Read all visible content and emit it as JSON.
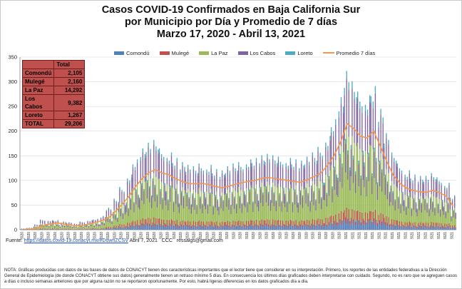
{
  "title_lines": [
    "Casos COVID-19 Confirmados en Baja California Sur",
    "por Municipio por Día y Promedio de 7 días",
    "Marzo 17, 2020 - Abril 13, 2021"
  ],
  "colors": {
    "comondu": "#4f81bd",
    "mulege": "#c0504d",
    "lapaz": "#9bbb59",
    "loscabos": "#8064a2",
    "loreto": "#4bacc6",
    "promedio": "#f79646",
    "grid": "#d9d9d9"
  },
  "legend": [
    "Comondú",
    "Mulegé",
    "La Paz",
    "Los Cabos",
    "Loreto",
    "Promedio 7 días"
  ],
  "table": {
    "header": "Total",
    "rows": [
      {
        "name": "Comondú",
        "value": "2,105"
      },
      {
        "name": "Mulegé",
        "value": "2,160"
      },
      {
        "name": "La Paz",
        "value": "14,292"
      },
      {
        "name": "Los Cabos",
        "value": "9,382"
      },
      {
        "name": "Loreto",
        "value": "1,267"
      },
      {
        "name": "TOTAL",
        "value": "29,206"
      }
    ]
  },
  "source": {
    "prefix": "Fuente:",
    "link": "https://datos.covid-19.conacyt.mx/#DownZCSV",
    "date": "Abril 7, 2021",
    "ccc": "CCC",
    "email": "ressalgs@gmail.com"
  },
  "note": "NOTA: Gráficas producidas con datos de las bases de datos de CONACYT tienen dos características importantes que el lector tiene que considerar en su interpretación. Primero, los reportes de las entidades federativas a la Dirección General de Epidemiología (de donde CONACYT obtiene sus datos) generalmente tienen un retraso mínimo 5 días. En consecuencia los últimos días graficados deben interpretarse con cuidado. Segundo, no es raro que se agreguen casos a días o incluso semanas anteriores que por alguna razón no se reportaron oportunamente. Por esto, habrá ligeras diferencias en los datos graficados día a día.",
  "chart_data": {
    "type": "bar",
    "stacked": true,
    "ylim": [
      0,
      350
    ],
    "yticks": [
      0,
      50,
      100,
      150,
      200,
      250,
      300,
      350
    ],
    "grid": true,
    "legend_position": "top",
    "xtick_labels": [
      "17-03-2020",
      "23-03-2020",
      "29-03-2020",
      "4/4/2020",
      "10-04-2020",
      "16-04-2020",
      "22-04-2020",
      "28-04-2020",
      "4/5/2020",
      "10-05-2020",
      "16-05-2020",
      "22-05-2020",
      "28-05-2020",
      "3/6/2020",
      "9/6/2020",
      "15-06-2020",
      "21-06-2020",
      "27-06-2020",
      "3/7/2020",
      "9/7/2020",
      "15-07-2020",
      "21-07-2020",
      "27-07-2020",
      "2/8/2020",
      "8/8/2020",
      "14-08-2020",
      "20-08-2020",
      "26-08-2020",
      "1/9/2020",
      "7/9/2020",
      "13-09-2020",
      "19-09-2020",
      "25-09-2020",
      "1/10/2020",
      "7/10/2020",
      "13-10-2020",
      "19-10-2020",
      "25-10-2020",
      "31-10-2020",
      "6/11/2020",
      "12/11/2020",
      "18-11-2020",
      "24-11-2020",
      "30-11-2020",
      "6/12/2020",
      "12/12/2020",
      "18-12-2020",
      "24-12-2020",
      "30-12-2020",
      "5/1/2021",
      "11/1/2021",
      "17/1/2021",
      "23/1/2021",
      "29/1/2021",
      "4/2/2021",
      "10/2/2021",
      "16/2/2021",
      "22/2/2021",
      "28/2/2021",
      "6/3/2021",
      "12/3/2021",
      "18/3/2021",
      "24/3/2021",
      "30/3/2021",
      "5/4/2021",
      "11/4/2021"
    ],
    "series_names": [
      "Comondú",
      "Mulegé",
      "La Paz",
      "Los Cabos",
      "Loreto"
    ],
    "weekly_totals": [
      2,
      3,
      8,
      15,
      14,
      14,
      12,
      11,
      9,
      12,
      14,
      16,
      20,
      32,
      45,
      62,
      80,
      102,
      118,
      126,
      130,
      118,
      112,
      104,
      98,
      94,
      92,
      96,
      94,
      88,
      86,
      92,
      96,
      98,
      102,
      104,
      108,
      110,
      108,
      106,
      104,
      102,
      100,
      106,
      112,
      120,
      136,
      160,
      192,
      230,
      215,
      200,
      195,
      208,
      175,
      140,
      112,
      96,
      86,
      80,
      78,
      78,
      82,
      76,
      68,
      50
    ],
    "weekly_shares": {
      "comondu": [
        0.07,
        0.07,
        0.07,
        0.07,
        0.07,
        0.07,
        0.07,
        0.07,
        0.07,
        0.07,
        0.07,
        0.07,
        0.07,
        0.07,
        0.07,
        0.07,
        0.07,
        0.07,
        0.07,
        0.07,
        0.07,
        0.07,
        0.07,
        0.07,
        0.07,
        0.07,
        0.07,
        0.07,
        0.07,
        0.07,
        0.07,
        0.07,
        0.07,
        0.07,
        0.07,
        0.07,
        0.07,
        0.07,
        0.07,
        0.07,
        0.07,
        0.07,
        0.07,
        0.07,
        0.07,
        0.07,
        0.07,
        0.07,
        0.07,
        0.07,
        0.07,
        0.07,
        0.07,
        0.07,
        0.07,
        0.07,
        0.07,
        0.07,
        0.07,
        0.07,
        0.07,
        0.07,
        0.07,
        0.07,
        0.07,
        0.07
      ],
      "mulege": [
        0.07,
        0.07,
        0.07,
        0.07,
        0.07,
        0.07,
        0.07,
        0.07,
        0.07,
        0.07,
        0.07,
        0.07,
        0.07,
        0.07,
        0.07,
        0.07,
        0.07,
        0.07,
        0.07,
        0.07,
        0.07,
        0.07,
        0.07,
        0.07,
        0.07,
        0.07,
        0.07,
        0.07,
        0.07,
        0.07,
        0.07,
        0.07,
        0.07,
        0.07,
        0.07,
        0.07,
        0.07,
        0.07,
        0.07,
        0.07,
        0.07,
        0.07,
        0.07,
        0.07,
        0.07,
        0.07,
        0.07,
        0.07,
        0.07,
        0.07,
        0.07,
        0.07,
        0.07,
        0.07,
        0.07,
        0.07,
        0.07,
        0.07,
        0.07,
        0.07,
        0.07,
        0.07,
        0.07,
        0.07,
        0.07,
        0.07
      ],
      "lapaz": [
        0.49,
        0.49,
        0.49,
        0.49,
        0.49,
        0.49,
        0.49,
        0.49,
        0.49,
        0.49,
        0.49,
        0.49,
        0.49,
        0.49,
        0.49,
        0.49,
        0.49,
        0.49,
        0.49,
        0.49,
        0.49,
        0.49,
        0.49,
        0.49,
        0.49,
        0.49,
        0.49,
        0.49,
        0.49,
        0.49,
        0.49,
        0.49,
        0.49,
        0.49,
        0.49,
        0.49,
        0.49,
        0.49,
        0.49,
        0.49,
        0.49,
        0.49,
        0.49,
        0.49,
        0.49,
        0.49,
        0.49,
        0.49,
        0.49,
        0.49,
        0.49,
        0.49,
        0.49,
        0.49,
        0.49,
        0.49,
        0.49,
        0.49,
        0.49,
        0.49,
        0.49,
        0.49,
        0.49,
        0.49,
        0.49,
        0.49
      ],
      "loscabos": [
        0.32,
        0.32,
        0.32,
        0.32,
        0.32,
        0.32,
        0.32,
        0.32,
        0.32,
        0.32,
        0.32,
        0.32,
        0.32,
        0.32,
        0.32,
        0.32,
        0.32,
        0.32,
        0.32,
        0.32,
        0.32,
        0.32,
        0.32,
        0.32,
        0.32,
        0.32,
        0.32,
        0.32,
        0.32,
        0.32,
        0.32,
        0.32,
        0.32,
        0.32,
        0.32,
        0.32,
        0.32,
        0.32,
        0.32,
        0.32,
        0.32,
        0.32,
        0.32,
        0.32,
        0.32,
        0.32,
        0.32,
        0.32,
        0.32,
        0.32,
        0.32,
        0.32,
        0.32,
        0.32,
        0.32,
        0.32,
        0.32,
        0.32,
        0.32,
        0.32,
        0.32,
        0.32,
        0.32,
        0.32,
        0.32,
        0.32
      ],
      "loreto": [
        0.05,
        0.05,
        0.05,
        0.05,
        0.05,
        0.05,
        0.05,
        0.05,
        0.05,
        0.05,
        0.05,
        0.05,
        0.05,
        0.05,
        0.05,
        0.05,
        0.05,
        0.05,
        0.05,
        0.05,
        0.05,
        0.05,
        0.05,
        0.05,
        0.05,
        0.05,
        0.05,
        0.05,
        0.05,
        0.05,
        0.05,
        0.05,
        0.05,
        0.05,
        0.05,
        0.05,
        0.05,
        0.05,
        0.05,
        0.05,
        0.05,
        0.05,
        0.05,
        0.05,
        0.05,
        0.05,
        0.05,
        0.05,
        0.05,
        0.05,
        0.05,
        0.05,
        0.05,
        0.05,
        0.05,
        0.05,
        0.05,
        0.05,
        0.05,
        0.05,
        0.05,
        0.05,
        0.05,
        0.05,
        0.05,
        0.05
      ]
    },
    "promedio_7_dias": [
      0.5,
      1,
      3,
      8,
      12,
      14,
      12,
      10,
      8,
      9,
      12,
      15,
      19,
      25,
      38,
      52,
      68,
      88,
      104,
      116,
      122,
      115,
      112,
      104,
      98,
      94,
      93,
      94,
      92,
      88,
      85,
      88,
      92,
      95,
      98,
      100,
      104,
      106,
      104,
      102,
      100,
      98,
      96,
      102,
      108,
      115,
      130,
      150,
      178,
      215,
      205,
      190,
      186,
      200,
      170,
      138,
      110,
      94,
      84,
      80,
      77,
      76,
      80,
      75,
      68,
      48
    ]
  }
}
